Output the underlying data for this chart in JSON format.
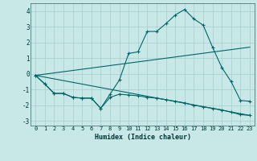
{
  "xlabel": "Humidex (Indice chaleur)",
  "bg_color": "#c8e8e8",
  "grid_color": "#a8cccc",
  "line_color": "#006666",
  "xlim": [
    -0.5,
    23.5
  ],
  "ylim": [
    -3.3,
    4.5
  ],
  "yticks": [
    -3,
    -2,
    -1,
    0,
    1,
    2,
    3,
    4
  ],
  "xticks": [
    0,
    1,
    2,
    3,
    4,
    5,
    6,
    7,
    8,
    9,
    10,
    11,
    12,
    13,
    14,
    15,
    16,
    17,
    18,
    19,
    20,
    21,
    22,
    23
  ],
  "line1_x": [
    0,
    1,
    2,
    3,
    4,
    5,
    6,
    7,
    8,
    9,
    10,
    11,
    12,
    13,
    14,
    15,
    16,
    17,
    18,
    19,
    20,
    21,
    22,
    23
  ],
  "line1_y": [
    -0.1,
    -0.65,
    -1.25,
    -1.25,
    -1.5,
    -1.55,
    -1.55,
    -2.2,
    -1.5,
    -1.3,
    -1.35,
    -1.4,
    -1.5,
    -1.55,
    -1.65,
    -1.75,
    -1.85,
    -2.0,
    -2.1,
    -2.2,
    -2.3,
    -2.45,
    -2.6,
    -2.65
  ],
  "line2_x": [
    0,
    1,
    2,
    3,
    4,
    5,
    6,
    7,
    8,
    9,
    10,
    11,
    12,
    13,
    14,
    15,
    16,
    17,
    18,
    19,
    20,
    21,
    22,
    23
  ],
  "line2_y": [
    -0.1,
    -0.65,
    -1.25,
    -1.25,
    -1.5,
    -1.55,
    -1.55,
    -2.2,
    -1.3,
    -0.4,
    1.3,
    1.4,
    2.7,
    2.7,
    3.2,
    3.75,
    4.1,
    3.5,
    3.1,
    1.7,
    0.4,
    -0.5,
    -1.7,
    -1.75
  ],
  "line3_x": [
    0,
    23
  ],
  "line3_y": [
    -0.1,
    1.7
  ],
  "line4_x": [
    0,
    23
  ],
  "line4_y": [
    -0.1,
    -2.65
  ]
}
